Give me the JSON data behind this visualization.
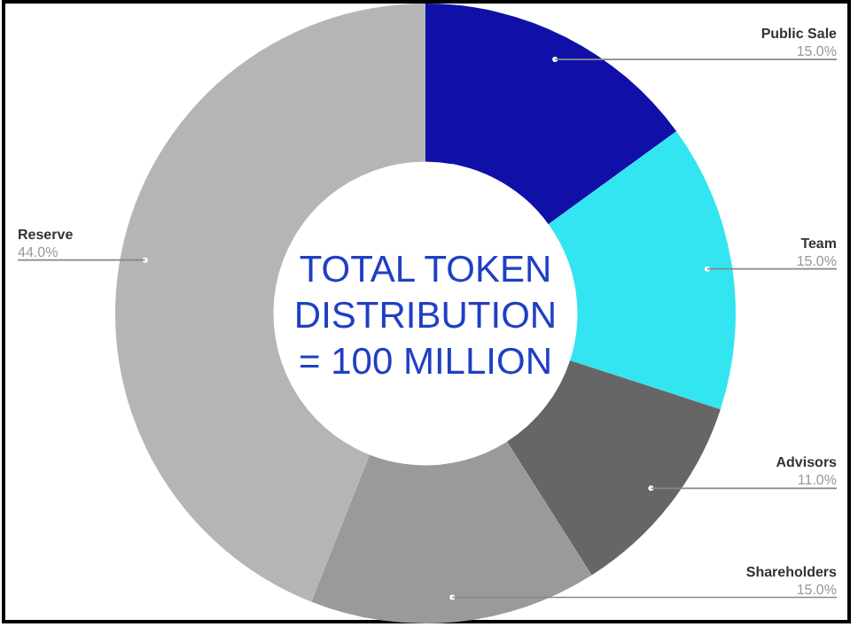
{
  "chart_data": {
    "type": "donut",
    "title": "TOTAL TOKEN\nDISTRIBUTION\n= 100 MILLION",
    "categories": [
      "Public Sale",
      "Team",
      "Advisors",
      "Shareholders",
      "Reserve"
    ],
    "values": [
      15,
      15,
      11,
      15,
      44
    ],
    "value_labels": [
      "15.0%",
      "15.0%",
      "11.0%",
      "15.0%",
      "44.0%"
    ],
    "colors": [
      "#1010a8",
      "#33e5f0",
      "#666666",
      "#9a9a9a",
      "#b5b5b5"
    ],
    "legend": false
  }
}
